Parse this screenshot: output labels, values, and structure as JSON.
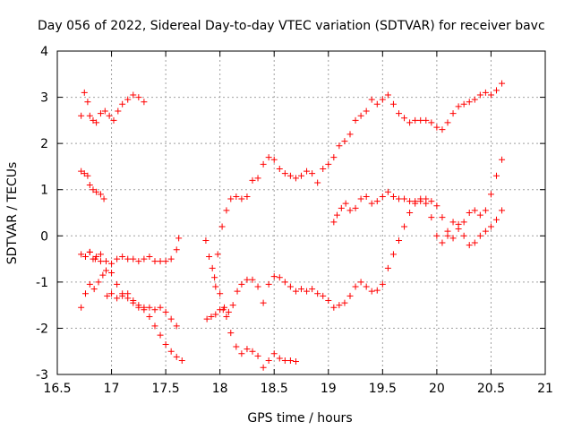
{
  "chart_data": {
    "type": "scatter",
    "title": "Day 056 of 2022, Sidereal Day-to-day VTEC variation (SDTVAR) for receiver bavc",
    "xlabel": "GPS time / hours",
    "ylabel": "SDTVAR / TECUs",
    "xlim": [
      16.5,
      21
    ],
    "ylim": [
      -3,
      4
    ],
    "xticks": [
      16.5,
      17,
      17.5,
      18,
      18.5,
      19,
      19.5,
      20,
      20.5,
      21
    ],
    "xtick_labels": [
      "16.5",
      "17",
      "17.5",
      "18",
      "18.5",
      "19",
      "19.5",
      "20",
      "20.5",
      "21"
    ],
    "yticks": [
      -3,
      -2,
      -1,
      0,
      1,
      2,
      3,
      4
    ],
    "ytick_labels": [
      "-3",
      "-2",
      "-1",
      "0",
      "1",
      "2",
      "3",
      "4"
    ],
    "grid": true,
    "marker": "+",
    "color": "#ff0000",
    "series": [
      {
        "name": "s1",
        "x": [
          16.72,
          16.75,
          16.78,
          16.8,
          16.83,
          16.86,
          16.9,
          16.94,
          16.98,
          17.02,
          17.06,
          17.1,
          17.15,
          17.2,
          17.25,
          17.3
        ],
        "y": [
          2.6,
          3.1,
          2.9,
          2.6,
          2.5,
          2.45,
          2.65,
          2.7,
          2.6,
          2.5,
          2.7,
          2.85,
          2.95,
          3.05,
          3.0,
          2.9
        ]
      },
      {
        "name": "s2",
        "x": [
          16.72,
          16.75,
          16.78,
          16.8,
          16.83,
          16.86,
          16.9,
          16.93
        ],
        "y": [
          1.4,
          1.35,
          1.3,
          1.1,
          1.0,
          0.95,
          0.9,
          0.8
        ]
      },
      {
        "name": "s3",
        "x": [
          16.72,
          16.76,
          16.8,
          16.83,
          16.86,
          16.9,
          16.95,
          17.0,
          17.05,
          17.1,
          17.15,
          17.2,
          17.25,
          17.3,
          17.35,
          17.4,
          17.45,
          17.5,
          17.55,
          17.6,
          17.62
        ],
        "y": [
          -0.4,
          -0.45,
          -0.35,
          -0.5,
          -0.45,
          -0.4,
          -0.55,
          -0.6,
          -0.5,
          -0.45,
          -0.5,
          -0.5,
          -0.55,
          -0.5,
          -0.45,
          -0.55,
          -0.55,
          -0.55,
          -0.5,
          -0.3,
          -0.05
        ]
      },
      {
        "name": "s4",
        "x": [
          16.72,
          16.76,
          16.8,
          16.84,
          16.88,
          16.92,
          16.96,
          17.0,
          17.05,
          17.1,
          17.15,
          17.2,
          17.25,
          17.3,
          17.35,
          17.4,
          17.45,
          17.5,
          17.55,
          17.6
        ],
        "y": [
          -1.55,
          -1.25,
          -1.05,
          -1.15,
          -1.0,
          -0.85,
          -1.3,
          -1.25,
          -1.35,
          -1.3,
          -1.25,
          -1.4,
          -1.5,
          -1.55,
          -1.55,
          -1.6,
          -1.55,
          -1.65,
          -1.8,
          -1.95
        ]
      },
      {
        "name": "s5",
        "x": [
          16.8,
          16.85,
          16.9,
          16.95,
          17.0,
          17.05,
          17.1,
          17.15,
          17.2,
          17.25,
          17.3,
          17.35,
          17.4,
          17.45,
          17.5,
          17.55,
          17.6,
          17.65
        ],
        "y": [
          -0.35,
          -0.5,
          -0.55,
          -0.75,
          -0.8,
          -1.05,
          -1.25,
          -1.35,
          -1.45,
          -1.55,
          -1.6,
          -1.75,
          -1.95,
          -2.15,
          -2.35,
          -2.5,
          -2.62,
          -2.7
        ]
      },
      {
        "name": "s6",
        "x": [
          17.87,
          17.9,
          17.93,
          17.96,
          18.0,
          18.03,
          18.06,
          18.1,
          18.15,
          18.2,
          18.25,
          18.3,
          18.35,
          18.4,
          18.45,
          18.5,
          18.55,
          18.6,
          18.65,
          18.7
        ],
        "y": [
          -0.1,
          -0.45,
          -0.7,
          -1.1,
          -1.25,
          -1.6,
          -1.75,
          -2.1,
          -2.4,
          -2.55,
          -2.45,
          -2.5,
          -2.6,
          -2.85,
          -2.7,
          -2.55,
          -2.65,
          -2.7,
          -2.7,
          -2.72
        ]
      },
      {
        "name": "s7",
        "x": [
          17.88,
          17.92,
          17.96,
          18.0,
          18.04,
          18.08,
          18.12,
          18.16,
          18.2,
          18.25,
          18.3,
          18.35,
          18.4,
          18.45,
          18.5,
          18.55,
          18.6,
          18.65,
          18.7,
          18.75,
          18.8,
          18.85,
          18.9,
          18.95,
          19.0,
          19.05,
          19.1,
          19.15,
          19.2,
          19.25,
          19.3,
          19.35,
          19.4,
          19.45,
          19.5,
          19.55,
          19.6,
          19.65,
          19.7,
          19.75,
          19.8,
          19.85,
          19.9,
          19.95,
          20.0,
          20.05,
          20.1,
          20.15,
          20.2,
          20.25,
          20.3,
          20.35,
          20.4,
          20.45,
          20.5,
          20.55,
          20.6
        ],
        "y": [
          -1.8,
          -1.75,
          -1.7,
          -1.6,
          -1.55,
          -1.65,
          -1.5,
          -1.2,
          -1.05,
          -0.95,
          -0.95,
          -1.1,
          -1.45,
          -1.05,
          -0.88,
          -0.9,
          -1.0,
          -1.1,
          -1.2,
          -1.15,
          -1.2,
          -1.15,
          -1.25,
          -1.3,
          -1.4,
          -1.55,
          -1.5,
          -1.45,
          -1.3,
          -1.1,
          -1.0,
          -1.1,
          -1.2,
          -1.18,
          -1.05,
          -0.7,
          -0.4,
          -0.1,
          0.2,
          0.5,
          0.75,
          0.8,
          0.7,
          0.4,
          0.0,
          -0.15,
          0.1,
          0.3,
          0.25,
          0.0,
          -0.2,
          -0.15,
          0.0,
          0.1,
          0.2,
          0.35,
          0.55
        ]
      },
      {
        "name": "s8",
        "x": [
          17.95,
          17.98,
          18.02,
          18.06,
          18.1,
          18.15,
          18.2,
          18.25,
          18.3,
          18.35,
          18.4,
          18.45,
          18.5,
          18.55,
          18.6,
          18.65,
          18.7,
          18.75,
          18.8,
          18.85,
          18.9,
          18.95,
          19.0,
          19.05,
          19.1,
          19.15,
          19.2,
          19.25,
          19.3,
          19.35,
          19.4,
          19.45,
          19.5,
          19.55,
          19.6,
          19.65,
          19.7,
          19.75,
          19.8,
          19.85,
          19.9,
          19.95,
          20.0,
          20.05,
          20.1,
          20.15,
          20.2,
          20.25,
          20.3,
          20.35,
          20.4,
          20.45,
          20.5,
          20.55,
          20.6
        ],
        "y": [
          -0.9,
          -0.4,
          0.2,
          0.55,
          0.8,
          0.85,
          0.8,
          0.85,
          1.2,
          1.25,
          1.55,
          1.7,
          1.65,
          1.45,
          1.35,
          1.3,
          1.25,
          1.3,
          1.4,
          1.35,
          1.15,
          1.45,
          1.55,
          1.7,
          1.95,
          2.05,
          2.2,
          2.5,
          2.6,
          2.7,
          2.95,
          2.85,
          2.95,
          3.05,
          2.85,
          2.65,
          2.55,
          2.45,
          2.5,
          2.5,
          2.5,
          2.45,
          2.35,
          2.3,
          2.45,
          2.65,
          2.8,
          2.85,
          2.9,
          2.95,
          3.05,
          3.1,
          3.05,
          3.15,
          3.3
        ]
      },
      {
        "name": "s9",
        "x": [
          19.05,
          19.08,
          19.12,
          19.16,
          19.2,
          19.25,
          19.3,
          19.35,
          19.4,
          19.45,
          19.5,
          19.55,
          19.6,
          19.65,
          19.7,
          19.75,
          19.8,
          19.85,
          19.9,
          19.95,
          20.0,
          20.05,
          20.1,
          20.15,
          20.2,
          20.25,
          20.3,
          20.35,
          20.4,
          20.45,
          20.5,
          20.55,
          20.6
        ],
        "y": [
          0.3,
          0.45,
          0.6,
          0.7,
          0.55,
          0.6,
          0.8,
          0.85,
          0.7,
          0.75,
          0.85,
          0.95,
          0.85,
          0.8,
          0.8,
          0.75,
          0.7,
          0.75,
          0.8,
          0.75,
          0.65,
          0.4,
          0.0,
          -0.05,
          0.15,
          0.3,
          0.5,
          0.55,
          0.45,
          0.55,
          0.9,
          1.3,
          1.65
        ]
      }
    ]
  }
}
